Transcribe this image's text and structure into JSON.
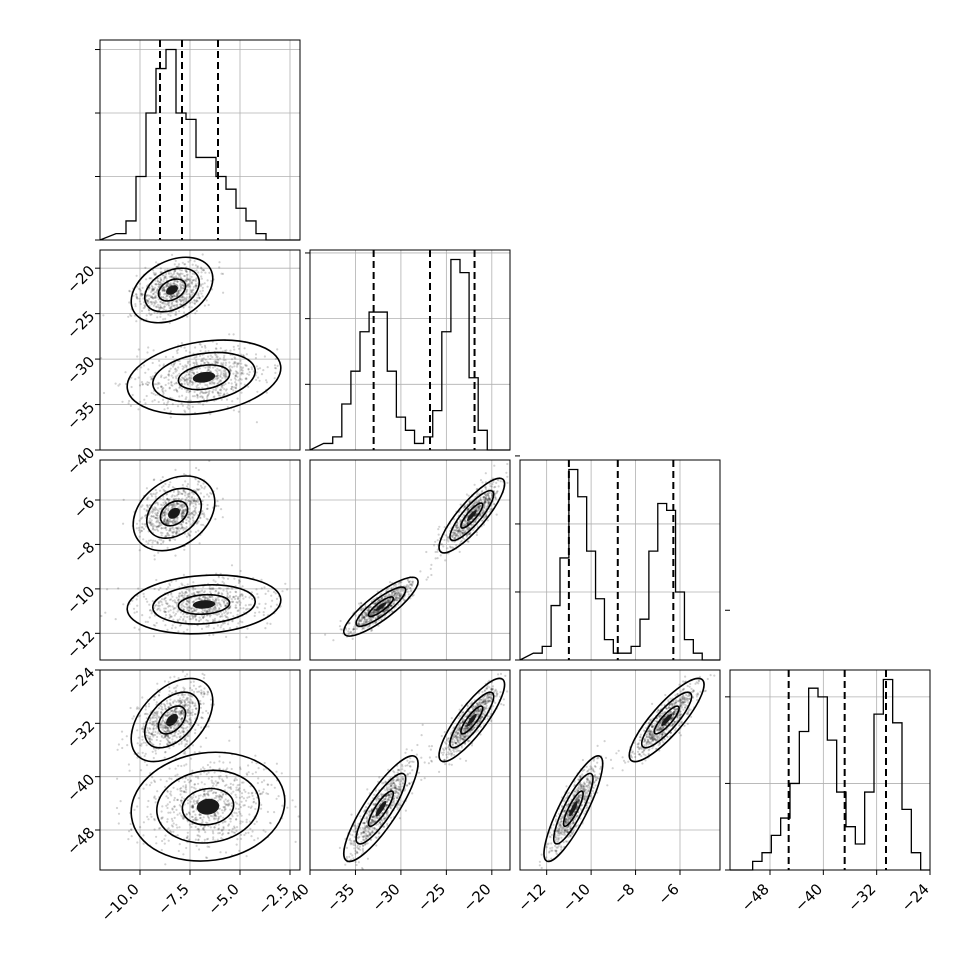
{
  "chart_data": {
    "type": "corner",
    "grid": true,
    "parameters": [
      {
        "key": "p0",
        "range": [
          -12,
          -2
        ],
        "ticks": [
          "−10.0",
          "−7.5",
          "−5.0",
          "−2.5"
        ],
        "tick_values": [
          -10,
          -7.5,
          -5,
          -2.5
        ],
        "quantiles": [
          -9,
          -7.9,
          -6.1
        ],
        "hist_bins": [
          -11.2,
          -10.7,
          -10.2,
          -9.7,
          -9.2,
          -8.7,
          -8.2,
          -7.7,
          -7.2,
          -6.7,
          -6.2,
          -5.7,
          -5.2,
          -4.7,
          -4.2,
          -3.7,
          -3.2
        ],
        "hist_counts": [
          1,
          3,
          10,
          20,
          27,
          30,
          20,
          19,
          13,
          13,
          10,
          8,
          5,
          3,
          1,
          0
        ],
        "hist_ticks": [
          0,
          10,
          20,
          30
        ]
      },
      {
        "key": "p1",
        "range": [
          -40,
          -18
        ],
        "ticks": [
          "−40",
          "−35",
          "−30",
          "−25",
          "−20"
        ],
        "tick_values": [
          -40,
          -35,
          -30,
          -25,
          -20
        ],
        "quantiles": [
          -33,
          -26.8,
          -21.9
        ],
        "hist_bins": [
          -38.5,
          -37.5,
          -36.5,
          -35.5,
          -34.5,
          -33.5,
          -32.5,
          -31.5,
          -30.5,
          -29.5,
          -28.5,
          -27.5,
          -26.5,
          -25.5,
          -24.5,
          -23.5,
          -22.5,
          -21.5,
          -20.5,
          -19.5,
          -18.5
        ],
        "hist_counts": [
          1,
          2,
          7,
          12,
          18,
          21,
          21,
          12,
          5,
          3,
          1,
          2,
          6,
          18,
          29,
          27,
          11,
          3,
          0,
          0
        ],
        "hist_ticks": [
          0,
          10,
          20,
          30
        ]
      },
      {
        "key": "p2",
        "range": [
          -13.2,
          -4.2
        ],
        "ticks": [
          "−12",
          "−10",
          "−8",
          "−6"
        ],
        "tick_values": [
          -12,
          -10,
          -8,
          -6
        ],
        "quantiles": [
          -11,
          -8.8,
          -6.3
        ],
        "hist_bins": [
          -12.6,
          -12.2,
          -11.8,
          -11.4,
          -11.0,
          -10.6,
          -10.2,
          -9.8,
          -9.4,
          -9.0,
          -8.6,
          -8.2,
          -7.8,
          -7.4,
          -7.0,
          -6.6,
          -6.2,
          -5.8,
          -5.4,
          -5.0,
          -4.6
        ],
        "hist_counts": [
          1,
          2,
          8,
          15,
          28,
          24,
          16,
          9,
          3,
          1,
          1,
          2,
          6,
          16,
          23,
          22,
          10,
          3,
          1,
          0
        ],
        "hist_ticks": [
          0,
          10,
          20,
          30
        ]
      },
      {
        "key": "p3",
        "range": [
          -54,
          -24
        ],
        "ticks": [
          "−48",
          "−40",
          "−32",
          "−24"
        ],
        "tick_values": [
          -48,
          -40,
          -32,
          -24
        ],
        "quantiles": [
          -45.2,
          -36.8,
          -30.6
        ],
        "hist_bins": [
          -52,
          -50.6,
          -49.2,
          -47.8,
          -46.4,
          -45.0,
          -43.6,
          -42.2,
          -40.8,
          -39.4,
          -38.0,
          -36.6,
          -35.2,
          -33.8,
          -32.4,
          -31.0,
          -29.6,
          -28.2,
          -26.8,
          -25.4,
          -24.0
        ],
        "hist_counts": [
          0,
          1,
          2,
          4,
          6,
          10,
          16,
          21,
          20,
          15,
          9,
          5,
          3,
          9,
          18,
          22,
          17,
          7,
          2,
          0
        ],
        "hist_ticks": [
          0,
          10,
          20,
          30
        ]
      }
    ],
    "pairs": [
      {
        "x": 0,
        "y": 1,
        "modes": [
          {
            "c": [
              -8.4,
              -22.4
            ],
            "s": [
              0.85,
              1.5
            ],
            "r": 0.35,
            "w": 0.5
          },
          {
            "c": [
              -6.8,
              -32
            ],
            "s": [
              1.6,
              1.7
            ],
            "r": 0.25,
            "w": 0.5
          }
        ]
      },
      {
        "x": 0,
        "y": 2,
        "modes": [
          {
            "c": [
              -8.3,
              -6.6
            ],
            "s": [
              0.85,
              0.7
            ],
            "r": 0.3,
            "w": 0.5
          },
          {
            "c": [
              -6.8,
              -10.7
            ],
            "s": [
              1.6,
              0.55
            ],
            "r": 0.15,
            "w": 0.5
          }
        ]
      },
      {
        "x": 1,
        "y": 2,
        "modes": [
          {
            "c": [
              -22.2,
              -6.7
            ],
            "s": [
              1.5,
              0.7
            ],
            "r": 0.85,
            "w": 0.5
          },
          {
            "c": [
              -32.2,
              -10.8
            ],
            "s": [
              1.7,
              0.55
            ],
            "r": 0.85,
            "w": 0.5
          }
        ]
      },
      {
        "x": 0,
        "y": 3,
        "modes": [
          {
            "c": [
              -8.4,
              -31.5
            ],
            "s": [
              0.85,
              2.6
            ],
            "r": 0.45,
            "w": 0.5
          },
          {
            "c": [
              -6.6,
              -44.5
            ],
            "s": [
              1.6,
              3.4
            ],
            "r": 0.1,
            "w": 0.5
          }
        ]
      },
      {
        "x": 1,
        "y": 3,
        "modes": [
          {
            "c": [
              -22.2,
              -31.5
            ],
            "s": [
              1.5,
              2.6
            ],
            "r": 0.85,
            "w": 0.5
          },
          {
            "c": [
              -32.2,
              -44.8
            ],
            "s": [
              1.7,
              3.3
            ],
            "r": 0.85,
            "w": 0.5
          }
        ]
      },
      {
        "x": 2,
        "y": 3,
        "modes": [
          {
            "c": [
              -6.6,
              -31.5
            ],
            "s": [
              0.7,
              2.6
            ],
            "r": 0.85,
            "w": 0.5
          },
          {
            "c": [
              -10.8,
              -44.8
            ],
            "s": [
              0.55,
              3.3
            ],
            "r": 0.85,
            "w": 0.5
          }
        ]
      }
    ]
  }
}
